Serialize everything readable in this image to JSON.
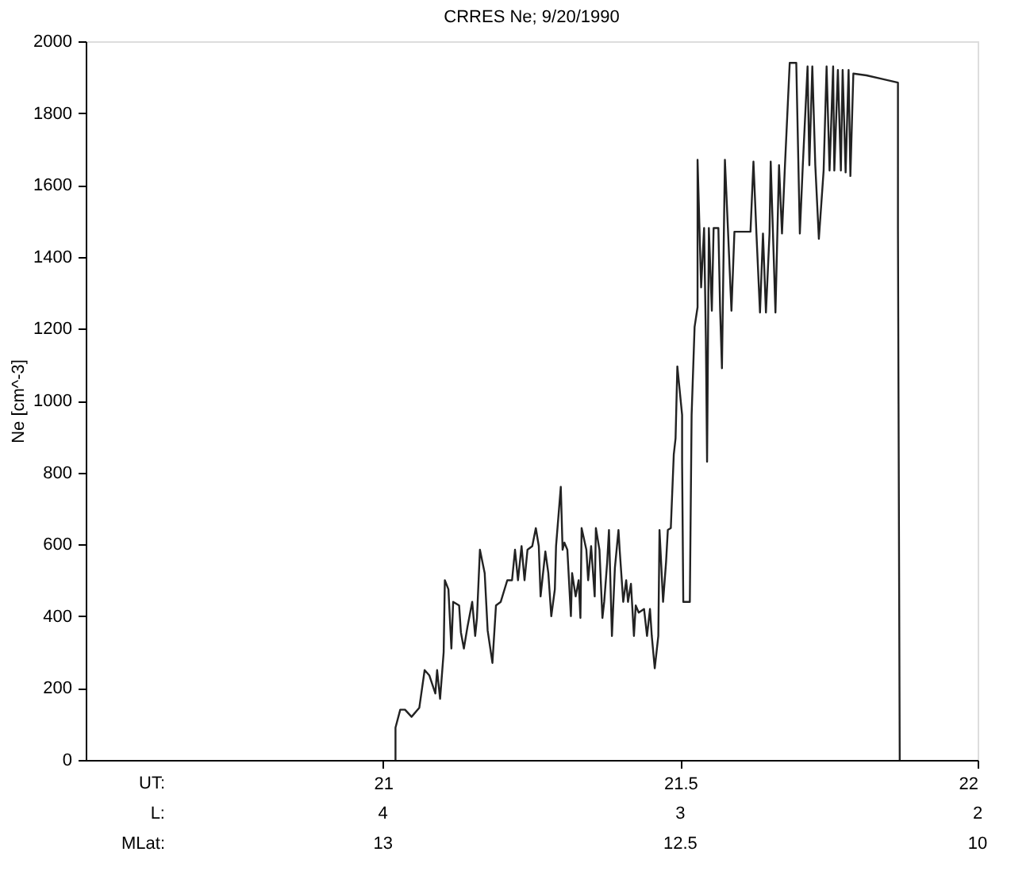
{
  "chart_data": {
    "type": "line",
    "title": "CRRES Ne; 9/20/1990",
    "ylabel": "Ne [cm^-3]",
    "xlim": [
      20.5,
      22
    ],
    "ylim": [
      0,
      2000
    ],
    "xticks": [
      21,
      21.5,
      22
    ],
    "yticks": [
      0,
      200,
      400,
      600,
      800,
      1000,
      1200,
      1400,
      1600,
      1800,
      2000
    ],
    "annotations": [
      "UT:",
      "L:",
      "MLat:",
      "4",
      "3",
      "2",
      "13",
      "12.5",
      "10"
    ],
    "grid": false,
    "marker": "none",
    "line_style": "solid",
    "series": [
      {
        "color": "#222222",
        "x": [
          21.021,
          21.021,
          21.029,
          21.037,
          21.048,
          21.061,
          21.07,
          21.078,
          21.088,
          21.091,
          21.096,
          21.102,
          21.104,
          21.11,
          21.115,
          21.118,
          21.128,
          21.131,
          21.136,
          21.142,
          21.15,
          21.155,
          21.158,
          21.163,
          21.171,
          21.176,
          21.184,
          21.19,
          21.198,
          21.209,
          21.217,
          21.222,
          21.227,
          21.233,
          21.238,
          21.243,
          21.251,
          21.257,
          21.262,
          21.265,
          21.273,
          21.278,
          21.283,
          21.289,
          21.291,
          21.299,
          21.302,
          21.305,
          21.31,
          21.316,
          21.318,
          21.324,
          21.329,
          21.332,
          21.334,
          21.342,
          21.345,
          21.35,
          21.356,
          21.358,
          21.364,
          21.369,
          21.372,
          21.377,
          21.38,
          21.385,
          21.39,
          21.396,
          21.398,
          21.404,
          21.409,
          21.412,
          21.417,
          21.422,
          21.425,
          21.43,
          21.439,
          21.444,
          21.449,
          21.452,
          21.457,
          21.463,
          21.465,
          21.471,
          21.476,
          21.479,
          21.484,
          21.489,
          21.492,
          21.495,
          21.503,
          21.503,
          21.505,
          21.516,
          21.519,
          21.524,
          21.529,
          21.529,
          21.535,
          21.54,
          21.543,
          21.545,
          21.548,
          21.553,
          21.556,
          21.564,
          21.567,
          21.57,
          21.575,
          21.58,
          21.586,
          21.591,
          21.618,
          21.623,
          21.628,
          21.634,
          21.639,
          21.644,
          21.65,
          21.652,
          21.66,
          21.666,
          21.671,
          21.676,
          21.684,
          21.695,
          21.701,
          21.706,
          21.714,
          21.717,
          21.722,
          21.727,
          21.733,
          21.741,
          21.746,
          21.751,
          21.757,
          21.759,
          21.765,
          21.77,
          21.773,
          21.778,
          21.783,
          21.786,
          21.791,
          21.813,
          21.84,
          21.866,
          21.866,
          21.869
        ],
        "values": [
          0,
          90,
          140,
          140,
          120,
          145,
          250,
          235,
          185,
          250,
          170,
          300,
          500,
          475,
          310,
          440,
          430,
          355,
          310,
          370,
          440,
          345,
          395,
          585,
          520,
          360,
          270,
          430,
          440,
          500,
          500,
          585,
          500,
          595,
          500,
          585,
          595,
          645,
          595,
          455,
          580,
          520,
          400,
          475,
          595,
          760,
          585,
          605,
          585,
          400,
          520,
          455,
          500,
          395,
          645,
          585,
          500,
          595,
          455,
          645,
          585,
          395,
          440,
          550,
          640,
          345,
          535,
          640,
          585,
          440,
          500,
          440,
          490,
          345,
          430,
          410,
          420,
          345,
          420,
          345,
          255,
          345,
          640,
          440,
          550,
          640,
          645,
          850,
          895,
          1095,
          960,
          830,
          440,
          440,
          960,
          1205,
          1260,
          1670,
          1315,
          1480,
          1170,
          830,
          1480,
          1250,
          1480,
          1480,
          1250,
          1090,
          1670,
          1480,
          1250,
          1470,
          1470,
          1665,
          1465,
          1245,
          1465,
          1245,
          1465,
          1665,
          1245,
          1655,
          1465,
          1655,
          1940,
          1940,
          1465,
          1655,
          1930,
          1655,
          1930,
          1655,
          1450,
          1640,
          1930,
          1640,
          1930,
          1640,
          1920,
          1640,
          1920,
          1635,
          1920,
          1625,
          1910,
          1905,
          1895,
          1885,
          1480,
          0
        ]
      }
    ]
  }
}
